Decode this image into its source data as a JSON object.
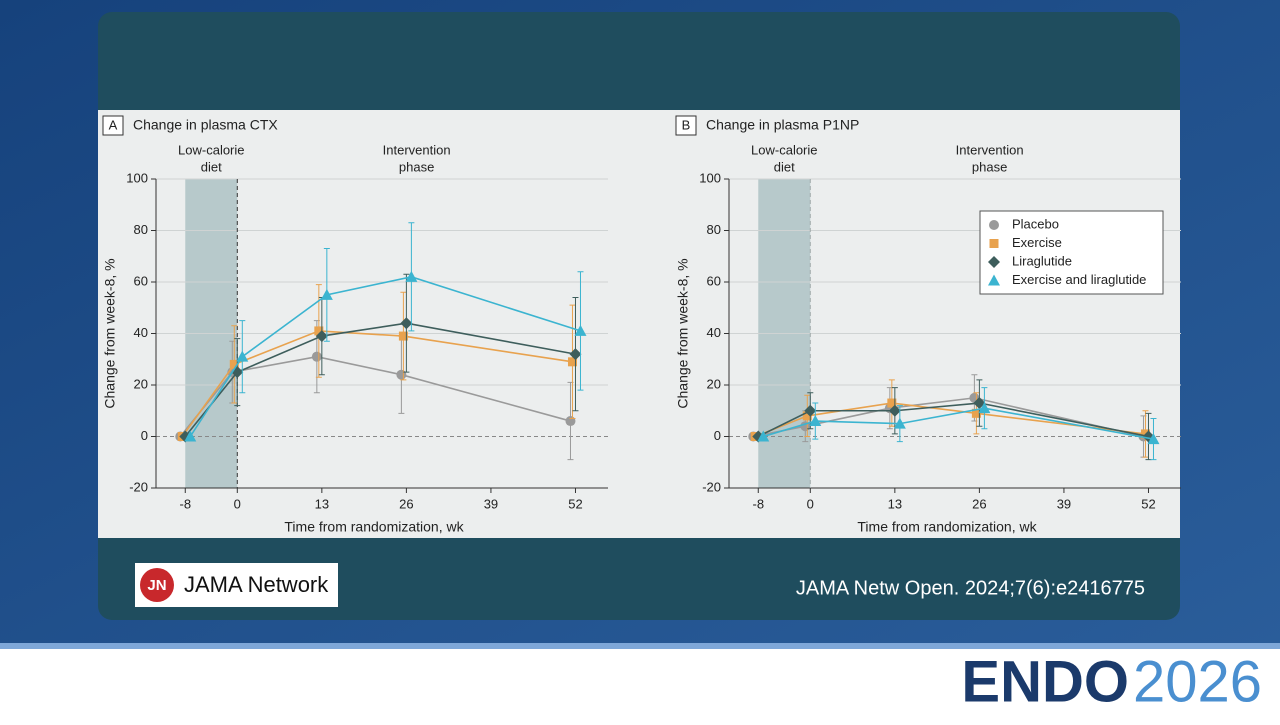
{
  "chart_data": [
    {
      "type": "line",
      "panel": "A",
      "title": "Change in plasma CTX",
      "shaded_label": [
        "Low-calorie",
        "diet"
      ],
      "phase_label": [
        "Intervention",
        "phase"
      ],
      "shaded_x": [
        -8,
        0
      ],
      "divider_color": "#333333",
      "x_label": "Time from randomization, wk",
      "y_label": "Change from week-8, %",
      "x": [
        -8,
        0,
        13,
        26,
        52
      ],
      "xlim": [
        -12.5,
        57
      ],
      "xticks": [
        -8,
        0,
        13,
        26,
        39,
        52
      ],
      "ylim": [
        -20,
        100
      ],
      "yticks": [
        -20,
        0,
        20,
        40,
        60,
        80,
        100
      ],
      "grid": true,
      "series": [
        {
          "name": "Placebo",
          "color": "#9a9a9a",
          "marker": "circle",
          "values": [
            0,
            25,
            31,
            24,
            6
          ],
          "errors": [
            0,
            12,
            14,
            15,
            15
          ]
        },
        {
          "name": "Exercise",
          "color": "#e8a24e",
          "marker": "square",
          "values": [
            0,
            28,
            41,
            39,
            29
          ],
          "errors": [
            0,
            15,
            18,
            17,
            22
          ]
        },
        {
          "name": "Liraglutide",
          "color": "#3e5e5c",
          "marker": "diamond",
          "values": [
            0,
            25,
            39,
            44,
            32
          ],
          "errors": [
            0,
            13,
            15,
            19,
            22
          ]
        },
        {
          "name": "Exercise and liraglutide",
          "color": "#3bb4d0",
          "marker": "triangle",
          "values": [
            0,
            31,
            55,
            62,
            41
          ],
          "errors": [
            0,
            14,
            18,
            21,
            23
          ]
        }
      ]
    },
    {
      "type": "line",
      "panel": "B",
      "title": "Change in plasma P1NP",
      "shaded_label": [
        "Low-calorie",
        "diet"
      ],
      "phase_label": [
        "Intervention",
        "phase"
      ],
      "shaded_x": [
        -8,
        0
      ],
      "divider_color": "#a0aaaa",
      "x_label": "Time from randomization, wk",
      "y_label": "Change from week-8, %",
      "x": [
        -8,
        0,
        13,
        26,
        52
      ],
      "xlim": [
        -12.5,
        57
      ],
      "xticks": [
        -8,
        0,
        13,
        26,
        39,
        52
      ],
      "ylim": [
        -20,
        100
      ],
      "yticks": [
        -20,
        0,
        20,
        40,
        60,
        80,
        100
      ],
      "grid": true,
      "legend": "upper right",
      "series": [
        {
          "name": "Placebo",
          "color": "#9a9a9a",
          "marker": "circle",
          "values": [
            0,
            4,
            11,
            15,
            0
          ],
          "errors": [
            0,
            6,
            8,
            9,
            8
          ]
        },
        {
          "name": "Exercise",
          "color": "#e8a24e",
          "marker": "square",
          "values": [
            0,
            8,
            13,
            9,
            1
          ],
          "errors": [
            0,
            8,
            9,
            8,
            9
          ]
        },
        {
          "name": "Liraglutide",
          "color": "#3e5e5c",
          "marker": "diamond",
          "values": [
            0,
            10,
            10,
            13,
            0
          ],
          "errors": [
            0,
            7,
            9,
            9,
            9
          ]
        },
        {
          "name": "Exercise and liraglutide",
          "color": "#3bb4d0",
          "marker": "triangle",
          "values": [
            0,
            6,
            5,
            11,
            -1
          ],
          "errors": [
            0,
            7,
            7,
            8,
            8
          ]
        }
      ]
    }
  ],
  "logo_icon": "JN",
  "logo": "JAMA Network",
  "citation": "JAMA Netw Open. 2024;7(6):e2416775",
  "footer_brand": "ENDO",
  "footer_year": "2026"
}
